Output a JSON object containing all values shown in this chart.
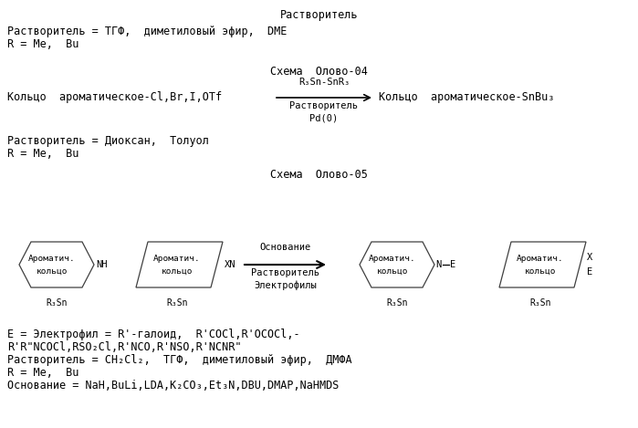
{
  "bg_color": "#ffffff",
  "text_color": "#000000",
  "font_family": "DejaVu Sans Mono",
  "title": "Растворитель",
  "lines_top": [
    "Растворитель = ТГФ,  диметиловый эфир,  DME",
    "R = Me,  Bu"
  ],
  "scheme04_title": "Схема  Олово-04",
  "scheme04_reactant": "Кольцо  ароматическое-Cl,Br,I,OTf",
  "scheme04_arrow_top": "R₃Sn-SnR₃",
  "scheme04_arrow_mid": "Растворитель",
  "scheme04_arrow_bot": "Pd(0)",
  "scheme04_product": "Кольцо  ароматическое-SnBu₃",
  "lines_mid": [
    "Растворитель = Диоксан,  Толуол",
    "R = Me,  Bu"
  ],
  "scheme05_title": "Схема  Олово-05",
  "scheme05_arrow_top": "Основание",
  "scheme05_arrow_mid": "Растворитель",
  "scheme05_arrow_bot": "Электрофилы",
  "shape1_line1": "Ароматич.",
  "shape1_line2": "кольцо",
  "shape1_bot": "R₃Sn",
  "shape1_right": "NH",
  "shape2_line1": "Ароматич.",
  "shape2_line2": "кольцо",
  "shape2_bot": "R₃Sn",
  "shape2_right": "XN",
  "shape3_line1": "Ароматич.",
  "shape3_line2": "кольцо",
  "shape3_bot": "R₃Sn",
  "shape3_right": "N",
  "shape3_right2": "E",
  "shape4_line1": "Ароматич.",
  "shape4_line2": "кольцо",
  "shape4_bot": "R₃Sn",
  "shape4_right1": "X",
  "shape4_right2": "E",
  "lines_bot": [
    "E = Электрофил = R'-галоид,  R'COCl,R'OCOCl,-",
    "R'R\"NCOCl,RSO₂Cl,R'NCO,R'NSO,R'NCNR\"",
    "Растворитель = CH₂Cl₂,  ТГФ,  диметиловый эфир,  ДМФА",
    "R = Me,  Bu",
    "Основание = NaH,BuLi,LDA,K₂CO₃,Et₃N,DBU,DMAP,NaHMDS"
  ]
}
